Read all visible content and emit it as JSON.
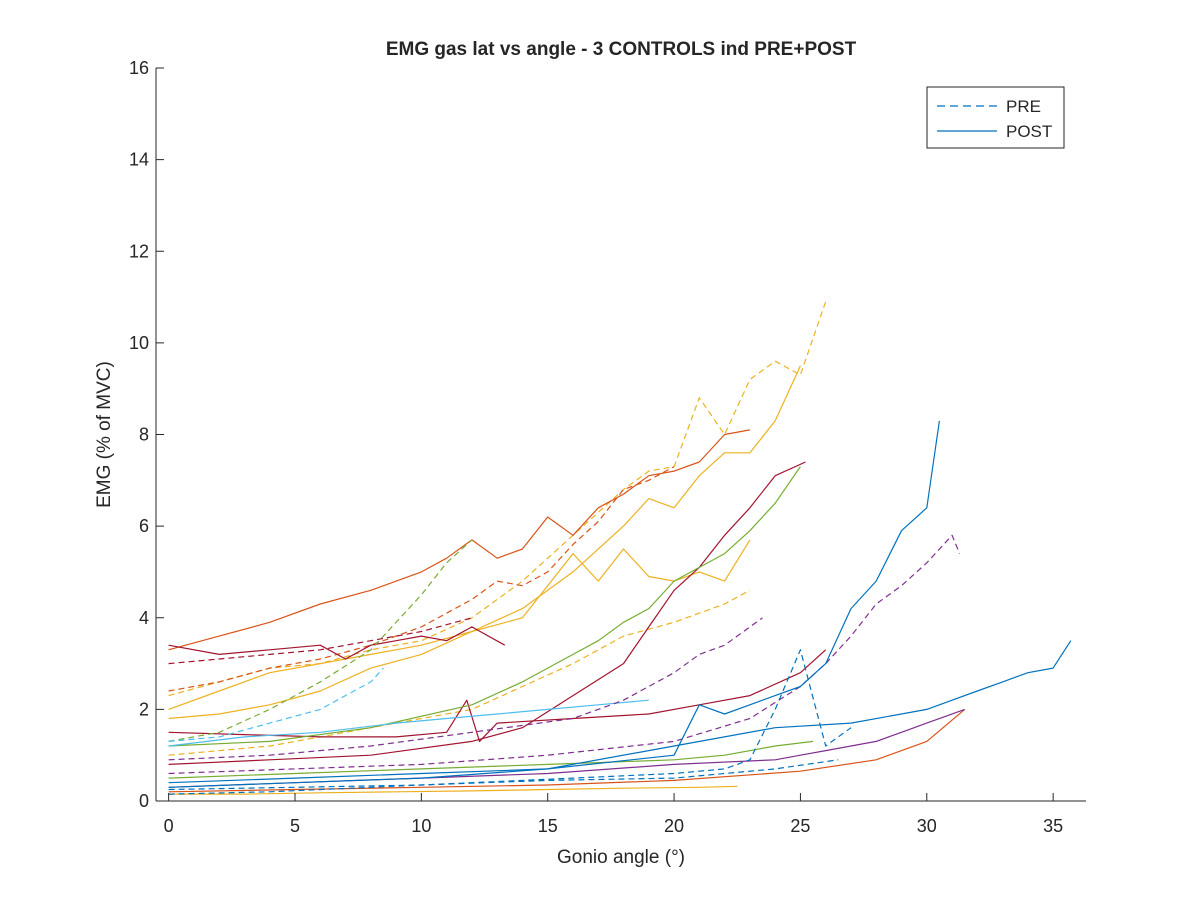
{
  "chart_data": {
    "type": "line",
    "title": "EMG gas lat vs angle - 3 CONTROLS ind PRE+POST",
    "xlabel": "Gonio angle (°)",
    "ylabel": "EMG (% of MVC)",
    "xlim": [
      -0.5,
      36.3
    ],
    "ylim": [
      0,
      16
    ],
    "xticks": [
      0,
      5,
      10,
      15,
      20,
      25,
      30,
      35
    ],
    "yticks": [
      0,
      2,
      4,
      6,
      8,
      10,
      12,
      14,
      16
    ],
    "xtick_labels": [
      "0",
      "5",
      "10",
      "15",
      "20",
      "25",
      "30",
      "35"
    ],
    "ytick_labels": [
      "0",
      "2",
      "4",
      "6",
      "8",
      "10",
      "12",
      "14",
      "16"
    ],
    "grid": false,
    "legend": {
      "placement": "top-right",
      "entries": [
        {
          "label": "PRE",
          "style": "dashed",
          "color": "#0072BD"
        },
        {
          "label": "POST",
          "style": "solid",
          "color": "#0072BD"
        }
      ]
    },
    "colors": {
      "blue": "#0072BD",
      "orange": "#D95319",
      "yellow": "#EDB120",
      "purple": "#7E2F8E",
      "green": "#77AC30",
      "cyan": "#4DBEEE",
      "darkred": "#A2142F",
      "axis": "#262626"
    },
    "series": [
      {
        "color": "#EDB120",
        "style": "dashed",
        "x": [
          0,
          2,
          4,
          6,
          8,
          10,
          12,
          14,
          16,
          18,
          19,
          20,
          21,
          22,
          23,
          24,
          25,
          26
        ],
        "y": [
          2.3,
          2.6,
          2.9,
          3.0,
          3.3,
          3.5,
          4.0,
          4.8,
          5.8,
          6.8,
          7.2,
          7.3,
          8.8,
          8.0,
          9.2,
          9.6,
          9.3,
          10.9
        ]
      },
      {
        "color": "#EDB120",
        "style": "solid",
        "x": [
          0,
          2,
          4,
          6,
          8,
          10,
          12,
          14,
          16,
          18,
          19,
          20,
          21,
          22,
          23,
          24,
          25
        ],
        "y": [
          2.0,
          2.4,
          2.8,
          3.0,
          3.2,
          3.4,
          3.7,
          4.2,
          5.0,
          6.0,
          6.6,
          6.4,
          7.1,
          7.6,
          7.6,
          8.3,
          9.5
        ]
      },
      {
        "color": "#EDB120",
        "style": "solid",
        "x": [
          0,
          2,
          4,
          6,
          8,
          10,
          12,
          14,
          15,
          16,
          17,
          18,
          19,
          20,
          21,
          22,
          23
        ],
        "y": [
          1.8,
          1.9,
          2.1,
          2.4,
          2.9,
          3.2,
          3.7,
          4.0,
          4.7,
          5.4,
          4.8,
          5.5,
          4.9,
          4.8,
          5.0,
          4.8,
          5.7
        ]
      },
      {
        "color": "#EDB120",
        "style": "dashed",
        "x": [
          0,
          2,
          4,
          6,
          8,
          10,
          12,
          14,
          16,
          18,
          20,
          22,
          23
        ],
        "y": [
          1.0,
          1.1,
          1.2,
          1.4,
          1.6,
          1.8,
          2.0,
          2.5,
          3.0,
          3.6,
          3.9,
          4.3,
          4.6
        ]
      },
      {
        "color": "#EDB120",
        "style": "solid",
        "x": [
          0,
          3,
          6,
          9,
          12,
          15,
          18,
          21,
          22.5
        ],
        "y": [
          0.15,
          0.15,
          0.18,
          0.2,
          0.22,
          0.25,
          0.28,
          0.3,
          0.32
        ]
      },
      {
        "color": "#D95319",
        "style": "solid",
        "x": [
          0,
          2,
          4,
          6,
          8,
          10,
          11,
          12,
          13,
          14,
          15,
          16,
          17,
          18,
          19,
          20,
          21,
          22,
          23
        ],
        "y": [
          3.3,
          3.6,
          3.9,
          4.3,
          4.6,
          5.0,
          5.3,
          5.7,
          5.3,
          5.5,
          6.2,
          5.8,
          6.4,
          6.7,
          7.1,
          7.2,
          7.4,
          8.0,
          8.1
        ]
      },
      {
        "color": "#D95319",
        "style": "dashed",
        "x": [
          0,
          2,
          4,
          6,
          8,
          10,
          12,
          13,
          14,
          15,
          16,
          17,
          18,
          19,
          20
        ],
        "y": [
          2.4,
          2.6,
          2.9,
          3.1,
          3.4,
          3.8,
          4.4,
          4.8,
          4.7,
          5.0,
          5.6,
          6.1,
          6.8,
          7.0,
          7.3
        ]
      },
      {
        "color": "#D95319",
        "style": "solid",
        "x": [
          0,
          5,
          10,
          15,
          20,
          25,
          28,
          30,
          31.5
        ],
        "y": [
          0.2,
          0.25,
          0.3,
          0.35,
          0.45,
          0.65,
          0.9,
          1.3,
          2.0
        ]
      },
      {
        "color": "#A2142F",
        "style": "solid",
        "x": [
          0,
          2,
          4,
          6,
          7,
          8,
          9,
          10,
          11,
          12,
          13.3
        ],
        "y": [
          3.4,
          3.2,
          3.3,
          3.4,
          3.1,
          3.4,
          3.5,
          3.6,
          3.5,
          3.8,
          3.4
        ]
      },
      {
        "color": "#A2142F",
        "style": "dashed",
        "x": [
          0,
          2,
          4,
          6,
          8,
          10,
          12
        ],
        "y": [
          3.0,
          3.1,
          3.2,
          3.3,
          3.5,
          3.7,
          4.0
        ]
      },
      {
        "color": "#A2142F",
        "style": "solid",
        "x": [
          0,
          4,
          8,
          12,
          14,
          16,
          18,
          19,
          20,
          21,
          22,
          23,
          24,
          25.2
        ],
        "y": [
          0.8,
          0.9,
          1.0,
          1.3,
          1.6,
          2.3,
          3.0,
          3.8,
          4.6,
          5.1,
          5.8,
          6.4,
          7.1,
          7.4
        ]
      },
      {
        "color": "#A2142F",
        "style": "solid",
        "x": [
          0,
          3,
          6,
          9,
          11,
          11.8,
          12.3,
          13,
          16,
          19,
          21,
          23,
          25,
          26
        ],
        "y": [
          1.5,
          1.45,
          1.4,
          1.4,
          1.5,
          2.2,
          1.3,
          1.7,
          1.8,
          1.9,
          2.1,
          2.3,
          2.8,
          3.3
        ]
      },
      {
        "color": "#77AC30",
        "style": "solid",
        "x": [
          0,
          4,
          8,
          12,
          14,
          16,
          17,
          18,
          19,
          20,
          21,
          22,
          23,
          24,
          25
        ],
        "y": [
          1.2,
          1.3,
          1.6,
          2.1,
          2.6,
          3.2,
          3.5,
          3.9,
          4.2,
          4.8,
          5.1,
          5.4,
          5.9,
          6.5,
          7.3
        ]
      },
      {
        "color": "#77AC30",
        "style": "dashed",
        "x": [
          0,
          2,
          4,
          6,
          8,
          10,
          11,
          12
        ],
        "y": [
          1.3,
          1.5,
          2.0,
          2.6,
          3.3,
          4.5,
          5.2,
          5.7
        ]
      },
      {
        "color": "#77AC30",
        "style": "solid",
        "x": [
          0,
          5,
          10,
          15,
          20,
          22,
          24,
          25.5
        ],
        "y": [
          0.5,
          0.6,
          0.7,
          0.8,
          0.9,
          1.0,
          1.2,
          1.3
        ]
      },
      {
        "color": "#4DBEEE",
        "style": "dashed",
        "x": [
          0,
          2,
          4,
          6,
          7,
          8,
          8.5
        ],
        "y": [
          1.3,
          1.4,
          1.7,
          2.0,
          2.3,
          2.6,
          2.9
        ]
      },
      {
        "color": "#4DBEEE",
        "style": "solid",
        "x": [
          0,
          3,
          6,
          9,
          11,
          13,
          15,
          17,
          19
        ],
        "y": [
          1.2,
          1.4,
          1.5,
          1.7,
          1.8,
          1.9,
          2.0,
          2.1,
          2.2
        ]
      },
      {
        "color": "#7E2F8E",
        "style": "dashed",
        "x": [
          0,
          4,
          8,
          12,
          16,
          18,
          20,
          21,
          22,
          23,
          23.5
        ],
        "y": [
          0.9,
          1.0,
          1.2,
          1.5,
          1.8,
          2.2,
          2.8,
          3.2,
          3.4,
          3.8,
          4.0
        ]
      },
      {
        "color": "#7E2F8E",
        "style": "dashed",
        "x": [
          0,
          5,
          10,
          15,
          20,
          23,
          25,
          26,
          27,
          28,
          29,
          30,
          31,
          31.3
        ],
        "y": [
          0.6,
          0.7,
          0.8,
          1.0,
          1.3,
          1.8,
          2.5,
          3.0,
          3.6,
          4.3,
          4.7,
          5.2,
          5.8,
          5.4
        ]
      },
      {
        "color": "#7E2F8E",
        "style": "solid",
        "x": [
          0,
          5,
          10,
          15,
          20,
          24,
          25,
          26,
          27,
          28,
          29,
          30,
          31.5
        ],
        "y": [
          0.3,
          0.4,
          0.5,
          0.6,
          0.8,
          0.9,
          1.0,
          1.1,
          1.2,
          1.3,
          1.5,
          1.7,
          2.0
        ]
      },
      {
        "color": "#0072BD",
        "style": "solid",
        "x": [
          0,
          5,
          10,
          15,
          20,
          21,
          22,
          23,
          24,
          25,
          26,
          27,
          28,
          29,
          30,
          30.5
        ],
        "y": [
          0.4,
          0.5,
          0.6,
          0.7,
          1.0,
          2.1,
          1.9,
          2.1,
          2.3,
          2.5,
          3.0,
          4.2,
          4.8,
          5.9,
          6.4,
          8.3
        ]
      },
      {
        "color": "#0072BD",
        "style": "solid",
        "x": [
          0,
          5,
          10,
          15,
          20,
          24,
          27,
          30,
          31,
          32,
          33,
          34,
          35,
          35.7
        ],
        "y": [
          0.3,
          0.4,
          0.5,
          0.7,
          1.2,
          1.6,
          1.7,
          2.0,
          2.2,
          2.4,
          2.6,
          2.8,
          2.9,
          3.5
        ]
      },
      {
        "color": "#0072BD",
        "style": "dashed",
        "x": [
          0,
          4,
          8,
          12,
          16,
          20,
          22,
          23,
          24,
          25,
          26,
          27
        ],
        "y": [
          0.15,
          0.2,
          0.3,
          0.4,
          0.5,
          0.6,
          0.7,
          0.9,
          2.0,
          3.3,
          1.2,
          1.6
        ]
      },
      {
        "color": "#0072BD",
        "style": "dashed",
        "x": [
          0,
          5,
          10,
          15,
          20,
          24,
          26.5
        ],
        "y": [
          0.25,
          0.3,
          0.35,
          0.45,
          0.5,
          0.7,
          0.9
        ]
      }
    ]
  }
}
